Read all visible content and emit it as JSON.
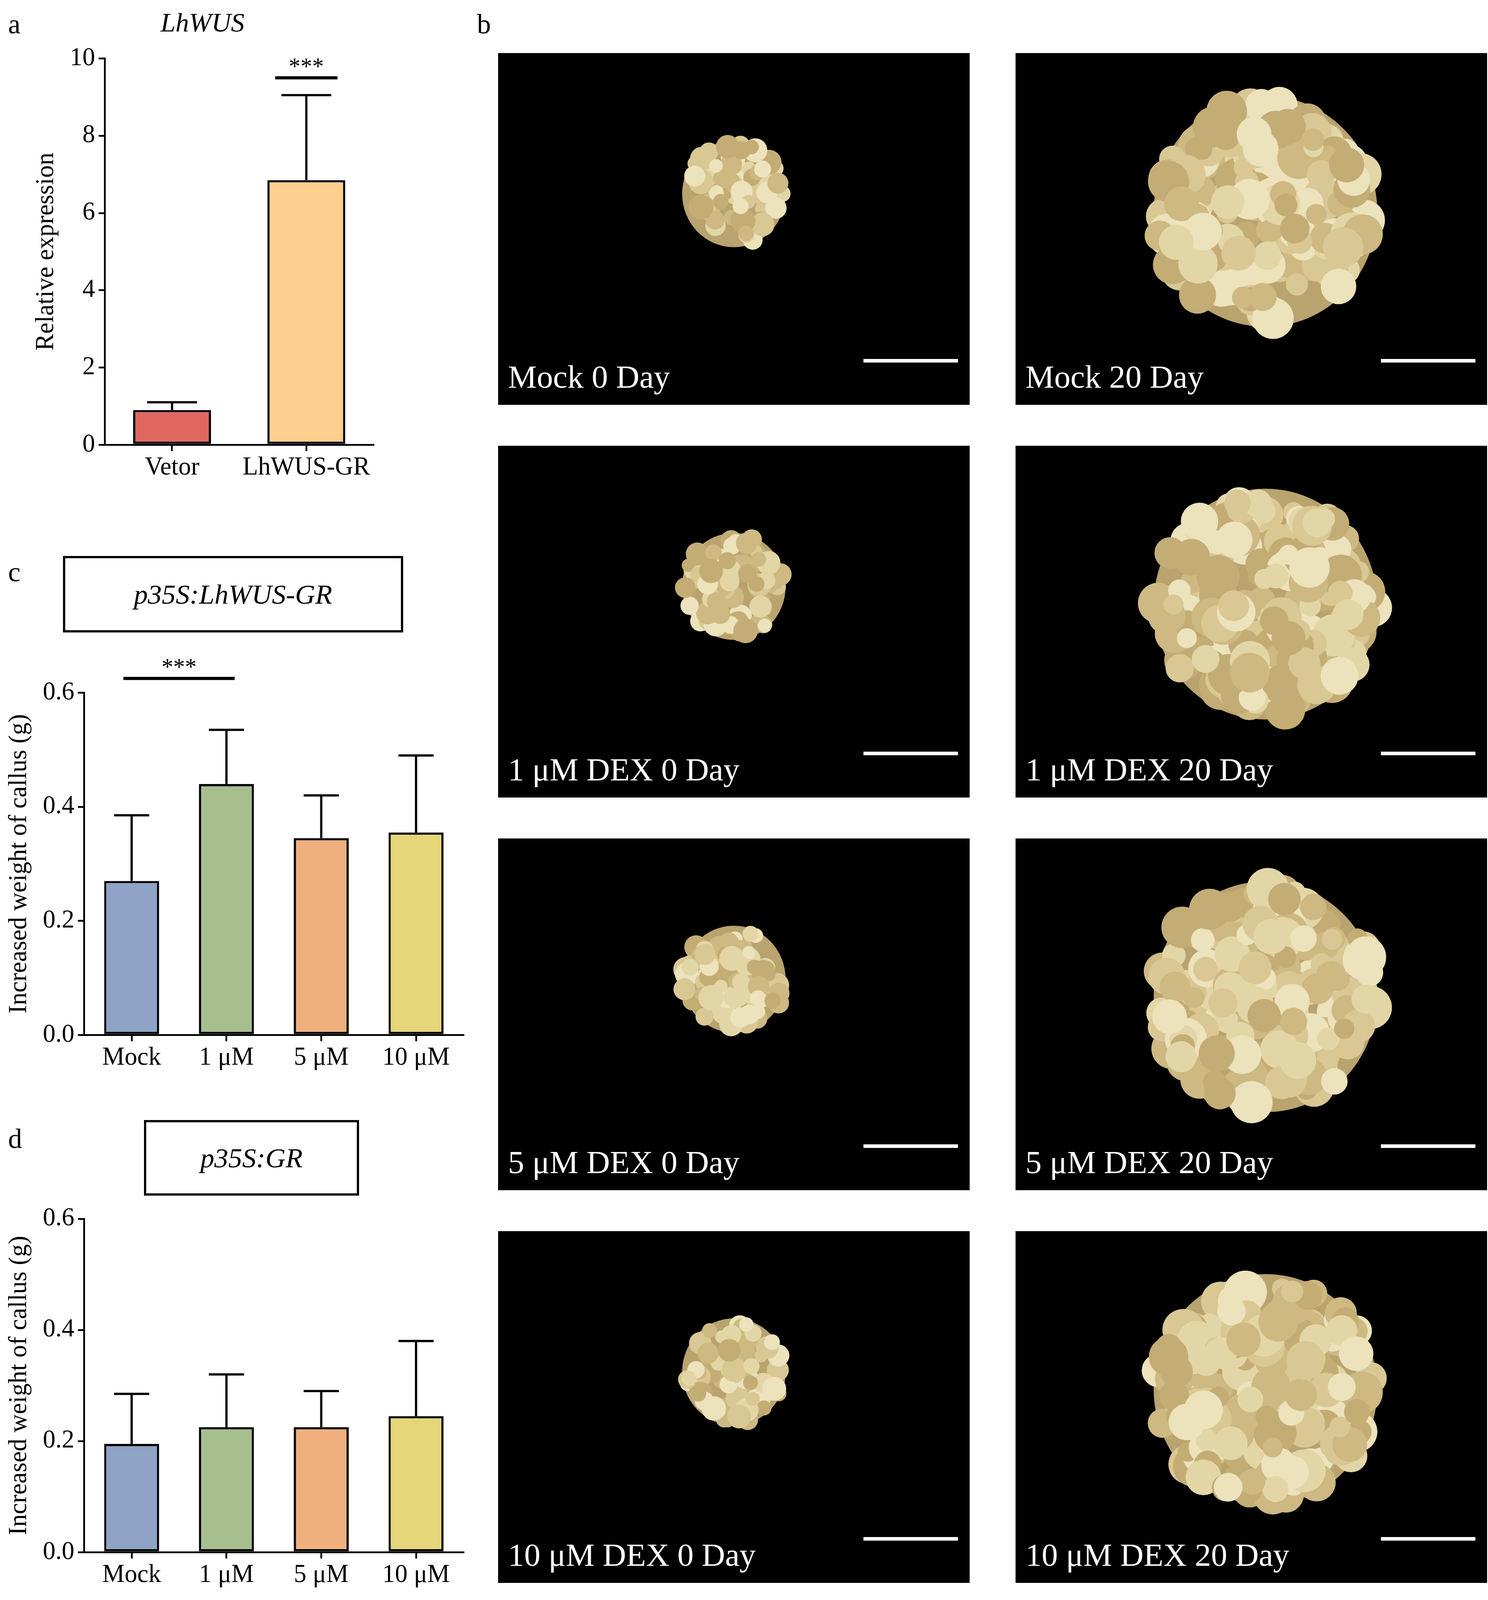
{
  "chart_data": [
    {
      "type": "bar",
      "panel_label": "a",
      "title": "LhWUS",
      "y_label": "Relative expression",
      "categories": [
        "Vetor",
        "LhWUS-GR"
      ],
      "values": [
        0.9,
        6.85
      ],
      "errors": [
        0.2,
        2.2
      ],
      "colors": [
        "#e0675f",
        "#ffcf8e"
      ],
      "ylim": [
        0,
        10
      ],
      "yticks": [
        0,
        2,
        4,
        6,
        8,
        10
      ],
      "grid": false,
      "significance": [
        {
          "from": 1,
          "to": 1,
          "label": "***",
          "y": 9.5
        }
      ]
    },
    {
      "type": "bar",
      "panel_label": "c",
      "title": "p35S:LhWUS-GR",
      "y_label": "Increased weight of callus (g)",
      "categories": [
        "Mock",
        "1 μM",
        "5 μM",
        "10 μM"
      ],
      "values": [
        0.27,
        0.44,
        0.345,
        0.355
      ],
      "errors": [
        0.115,
        0.095,
        0.075,
        0.135
      ],
      "colors": [
        "#8ea3c5",
        "#a7bf8f",
        "#efb07e",
        "#e6d67a"
      ],
      "ylim": [
        0,
        0.6
      ],
      "yticks": [
        {
          "value": 0,
          "label": "0.0"
        },
        0.2,
        0.4,
        0.6
      ],
      "grid": false,
      "significance": [
        {
          "from": 0,
          "to": 1,
          "label": "***",
          "y": 0.625
        }
      ]
    },
    {
      "type": "bar",
      "panel_label": "d",
      "title": "p35S:GR",
      "y_label": "Increased weight of callus (g)",
      "categories": [
        "Mock",
        "1 μM",
        "5 μM",
        "10 μM"
      ],
      "values": [
        0.195,
        0.225,
        0.225,
        0.245
      ],
      "errors": [
        0.09,
        0.095,
        0.065,
        0.135
      ],
      "colors": [
        "#8ea3c5",
        "#a7bf8f",
        "#efb07e",
        "#e6d67a"
      ],
      "ylim": [
        0,
        0.6
      ],
      "yticks": [
        {
          "value": 0,
          "label": "0.0"
        },
        0.2,
        0.4,
        0.6
      ],
      "grid": false,
      "significance": []
    }
  ],
  "image_panels": {
    "panel_label": "b",
    "images": [
      {
        "label": "Mock 0 Day"
      },
      {
        "label": "Mock 20 Day"
      },
      {
        "label": "1 μM DEX 0 Day"
      },
      {
        "label": "1 μM DEX 20 Day"
      },
      {
        "label": "5 μM DEX 0 Day"
      },
      {
        "label": "5 μM DEX 20 Day"
      },
      {
        "label": "10 μM DEX 0 Day"
      },
      {
        "label": "10 μM DEX 20 Day"
      }
    ]
  }
}
